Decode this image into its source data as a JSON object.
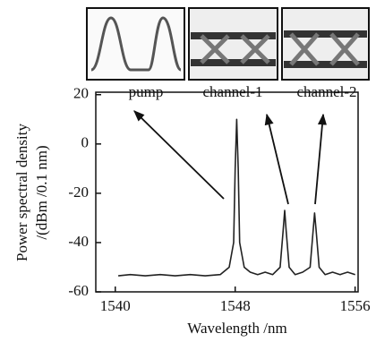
{
  "chart_data": {
    "type": "line",
    "x": [
      1540.2,
      1541,
      1542,
      1543,
      1544,
      1545,
      1546,
      1547,
      1547.6,
      1547.9,
      1548.0,
      1548.1,
      1548.2,
      1548.3,
      1548.6,
      1549,
      1549.5,
      1550,
      1550.5,
      1551,
      1551.2,
      1551.3,
      1551.4,
      1551.6,
      1552,
      1552.5,
      1553,
      1553.2,
      1553.3,
      1553.4,
      1553.6,
      1554,
      1554.5,
      1555,
      1555.5,
      1556
    ],
    "values": [
      -53.5,
      -53,
      -53.5,
      -53,
      -53.5,
      -53,
      -53.5,
      -53,
      -50,
      -40,
      -10,
      10,
      -10,
      -40,
      -50,
      -52,
      -53,
      -52,
      -53,
      -50,
      -35,
      -27,
      -35,
      -50,
      -53,
      -52,
      -50,
      -35,
      -28,
      -35,
      -50,
      -53,
      -52,
      -53,
      -52,
      -53
    ],
    "color": "#222222",
    "xlim": [
      1538.7,
      1556.2
    ],
    "xticks": [
      1540,
      1548,
      1556
    ],
    "ylim": [
      -60,
      21
    ],
    "yticks": [
      -60,
      -40,
      -20,
      0,
      20
    ],
    "xlabel": "Wavelength /nm",
    "ylabel": [
      "Power spectral density",
      "/(dBm /0.1 nm)"
    ],
    "annotations": [
      "pump",
      "channel-1",
      "channel-2"
    ]
  }
}
